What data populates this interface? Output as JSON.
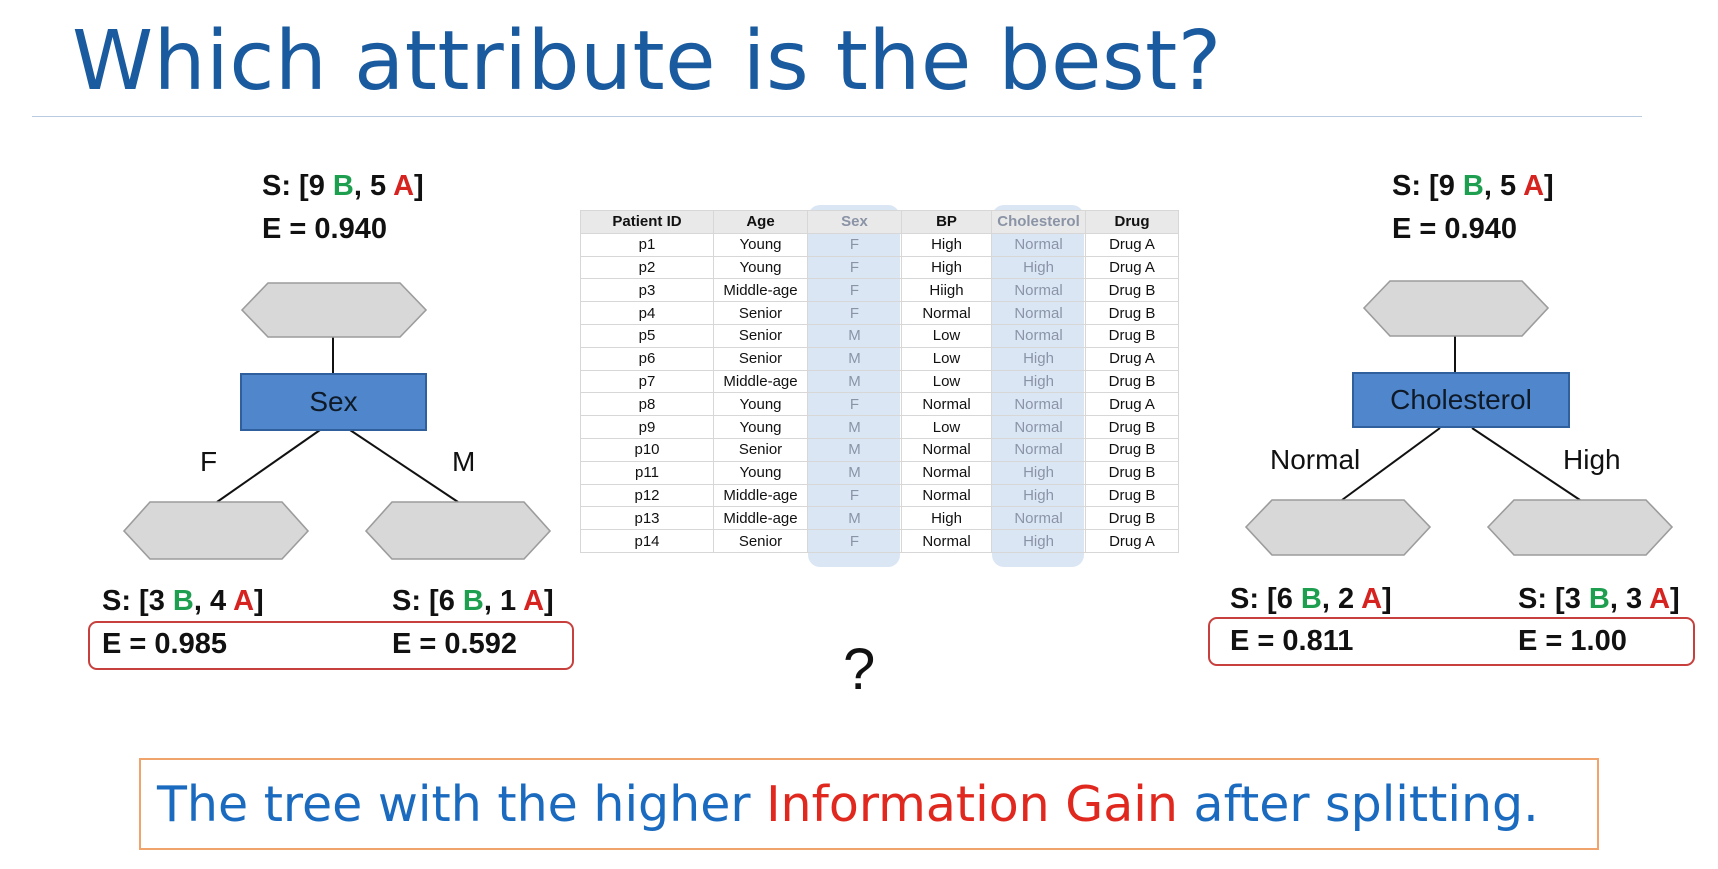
{
  "title": "Which attribute is the best?",
  "left_tree": {
    "root": {
      "s_prefix": "S: [9 ",
      "b": "B",
      "sep": ", 5 ",
      "a": "A",
      "close": "]",
      "entropy": "E = 0.940"
    },
    "attribute": "Sex",
    "branch_left": "F",
    "branch_right": "M",
    "child_left": {
      "s_prefix": "S: [3 ",
      "b": "B",
      "sep": ", 4 ",
      "a": "A",
      "close": "]",
      "entropy": "E = 0.985"
    },
    "child_right": {
      "s_prefix": "S: [6 ",
      "b": "B",
      "sep": ", 1 ",
      "a": "A",
      "close": "]",
      "entropy": "E = 0.592"
    }
  },
  "right_tree": {
    "root": {
      "s_prefix": "S: [9 ",
      "b": "B",
      "sep": ", 5 ",
      "a": "A",
      "close": "]",
      "entropy": "E = 0.940"
    },
    "attribute": "Cholesterol",
    "branch_left": "Normal",
    "branch_right": "High",
    "child_left": {
      "s_prefix": "S: [6 ",
      "b": "B",
      "sep": ", 2 ",
      "a": "A",
      "close": "]",
      "entropy": "E = 0.811"
    },
    "child_right": {
      "s_prefix": "S: [3 ",
      "b": "B",
      "sep": ", 3 ",
      "a": "A",
      "close": "]",
      "entropy": "E = 1.00"
    }
  },
  "table": {
    "headers": [
      "Patient ID",
      "Age",
      "Sex",
      "BP",
      "Cholesterol",
      "Drug"
    ],
    "highlighted_columns": [
      "Sex",
      "Cholesterol"
    ],
    "rows": [
      [
        "p1",
        "Young",
        "F",
        "High",
        "Normal",
        "Drug A"
      ],
      [
        "p2",
        "Young",
        "F",
        "High",
        "High",
        "Drug A"
      ],
      [
        "p3",
        "Middle-age",
        "F",
        "Hiigh",
        "Normal",
        "Drug B"
      ],
      [
        "p4",
        "Senior",
        "F",
        "Normal",
        "Normal",
        "Drug B"
      ],
      [
        "p5",
        "Senior",
        "M",
        "Low",
        "Normal",
        "Drug B"
      ],
      [
        "p6",
        "Senior",
        "M",
        "Low",
        "High",
        "Drug A"
      ],
      [
        "p7",
        "Middle-age",
        "M",
        "Low",
        "High",
        "Drug B"
      ],
      [
        "p8",
        "Young",
        "F",
        "Normal",
        "Normal",
        "Drug A"
      ],
      [
        "p9",
        "Young",
        "M",
        "Low",
        "Normal",
        "Drug B"
      ],
      [
        "p10",
        "Senior",
        "M",
        "Normal",
        "Normal",
        "Drug B"
      ],
      [
        "p11",
        "Young",
        "M",
        "Normal",
        "High",
        "Drug B"
      ],
      [
        "p12",
        "Middle-age",
        "F",
        "Normal",
        "High",
        "Drug B"
      ],
      [
        "p13",
        "Middle-age",
        "M",
        "High",
        "Normal",
        "Drug B"
      ],
      [
        "p14",
        "Senior",
        "F",
        "Normal",
        "High",
        "Drug A"
      ]
    ]
  },
  "question_mark": "?",
  "answer": {
    "before": "The tree with the higher ",
    "highlight": "Information Gain",
    "after": " after splitting."
  },
  "colors": {
    "title": "#1a5a9e",
    "class_b": "#1e9e4f",
    "class_a": "#d62320",
    "attribute_box": "#4f86cc",
    "entropy_outline": "#c8403d",
    "answer_border": "#f0a36a",
    "answer_text": "#1a6abf",
    "answer_highlight": "#e0281f"
  }
}
